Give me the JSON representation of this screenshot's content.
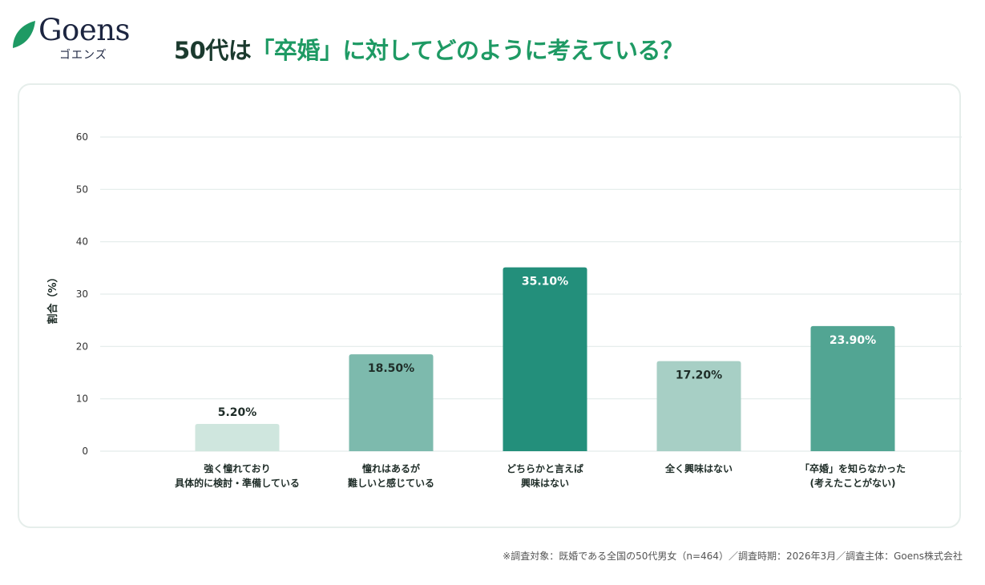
{
  "logo": {
    "word": "Goens",
    "kana": "ゴエンズ"
  },
  "header": {
    "title_pre": "50代は",
    "title_highlight": "「卒婚」に対してどのように考えている？"
  },
  "footer": {
    "note": "※調査対象：既婚である全国の50代男女（n=464）／調査時期：2026年3月／調査主体：Goens株式会社"
  },
  "colors": {
    "title": "#1b3a2e",
    "accent": "#1e9a64"
  },
  "chart_data": {
    "type": "bar",
    "title": "50代は「卒婚」に対してどのように考えている？",
    "ylabel": "割合（%）",
    "xlabel": "",
    "ylim": [
      0,
      60
    ],
    "yticks": [
      0,
      10,
      20,
      30,
      40,
      50,
      60
    ],
    "grid": true,
    "categories": [
      [
        "強く憧れており",
        "具体的に検討・準備している"
      ],
      [
        "憧れはあるが",
        "難しいと感じている"
      ],
      [
        "どちらかと言えば",
        "興味はない"
      ],
      [
        "全く興味はない"
      ],
      [
        "「卒婚」を知らなかった",
        "(考えたことがない)"
      ]
    ],
    "values": [
      5.2,
      18.5,
      35.1,
      17.2,
      23.9
    ],
    "data_labels": [
      "5.20%",
      "18.50%",
      "35.10%",
      "17.20%",
      "23.90%"
    ],
    "bar_colors": [
      "#cfe6de",
      "#7dbaad",
      "#238f7b",
      "#a7cfc5",
      "#52a593"
    ],
    "label_colors": [
      "#1f2d28",
      "#1f2d28",
      "#ffffff",
      "#1f2d28",
      "#ffffff"
    ]
  }
}
